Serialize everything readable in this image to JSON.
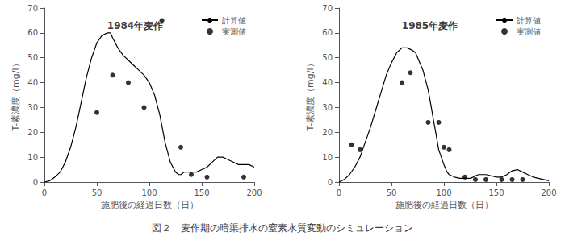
{
  "caption": "図２　麦作期の暗渠排水の窒素水質変動のシミュレーション",
  "chart_data": [
    {
      "type": "line",
      "title": "1984年麦作",
      "xlabel": "施肥後の経過日数（日）",
      "ylabel": "T-素濃度（mg/l）",
      "xlim": [
        0,
        200
      ],
      "ylim": [
        0,
        70
      ],
      "xticks": [
        0,
        50,
        100,
        150,
        200
      ],
      "yticks": [
        0,
        10,
        20,
        30,
        40,
        50,
        60,
        70
      ],
      "grid": false,
      "legend": "upper right",
      "series": [
        {
          "name": "計算値",
          "type": "line",
          "color": "#000000",
          "x": [
            0,
            5,
            10,
            15,
            20,
            25,
            30,
            35,
            40,
            45,
            50,
            55,
            60,
            63,
            65,
            70,
            75,
            80,
            85,
            90,
            95,
            100,
            105,
            110,
            115,
            120,
            125,
            128,
            130,
            133,
            135,
            140,
            145,
            150,
            155,
            160,
            165,
            170,
            175,
            180,
            185,
            190,
            195,
            200
          ],
          "values": [
            0,
            0.5,
            2,
            4,
            8,
            14,
            22,
            32,
            42,
            50,
            56,
            59,
            60,
            60,
            58,
            54,
            51,
            49,
            47,
            45,
            43,
            40,
            35,
            27,
            16,
            8,
            4,
            3,
            3,
            4,
            4,
            4,
            4,
            5,
            6,
            8,
            10,
            10,
            9,
            8,
            7,
            7,
            7,
            6
          ]
        },
        {
          "name": "実測値",
          "type": "scatter",
          "color": "#000000",
          "x": [
            50,
            65,
            80,
            95,
            112,
            130,
            140,
            155,
            190
          ],
          "values": [
            28,
            43,
            40,
            30,
            65,
            14,
            3,
            2,
            2
          ]
        }
      ]
    },
    {
      "type": "line",
      "title": "1985年麦作",
      "xlabel": "施肥後の経過日数（日）",
      "ylabel": "T-素濃度（mg/l）",
      "xlim": [
        0,
        200
      ],
      "ylim": [
        0,
        70
      ],
      "xticks": [
        0,
        50,
        100,
        150,
        200
      ],
      "yticks": [
        0,
        10,
        20,
        30,
        40,
        50,
        60,
        70
      ],
      "grid": false,
      "legend": "upper right",
      "series": [
        {
          "name": "計算値",
          "type": "line",
          "color": "#000000",
          "x": [
            0,
            5,
            10,
            15,
            20,
            25,
            30,
            35,
            40,
            45,
            50,
            55,
            60,
            65,
            70,
            73,
            75,
            80,
            85,
            88,
            90,
            93,
            95,
            100,
            103,
            105,
            110,
            115,
            120,
            125,
            128,
            130,
            133,
            135,
            140,
            145,
            150,
            155,
            160,
            163,
            165,
            170,
            175,
            180,
            185,
            190,
            195,
            200
          ],
          "values": [
            0,
            1,
            3,
            6,
            10,
            16,
            22,
            29,
            36,
            43,
            48,
            52,
            54,
            54,
            53,
            52,
            50,
            45,
            37,
            30,
            25,
            18,
            13,
            7,
            4,
            3,
            2,
            1.5,
            1.5,
            1.5,
            2,
            2.5,
            3,
            3,
            3,
            2.5,
            2,
            2,
            3,
            4,
            4.5,
            5,
            4,
            3,
            2,
            1.5,
            1,
            0.5
          ]
        },
        {
          "name": "実測値",
          "type": "scatter",
          "color": "#000000",
          "x": [
            12,
            20,
            60,
            68,
            85,
            95,
            100,
            105,
            120,
            130,
            140,
            155,
            165,
            175
          ],
          "values": [
            15,
            13,
            40,
            44,
            24,
            24,
            14,
            13,
            2,
            1,
            1,
            1,
            1,
            1
          ]
        }
      ]
    }
  ]
}
